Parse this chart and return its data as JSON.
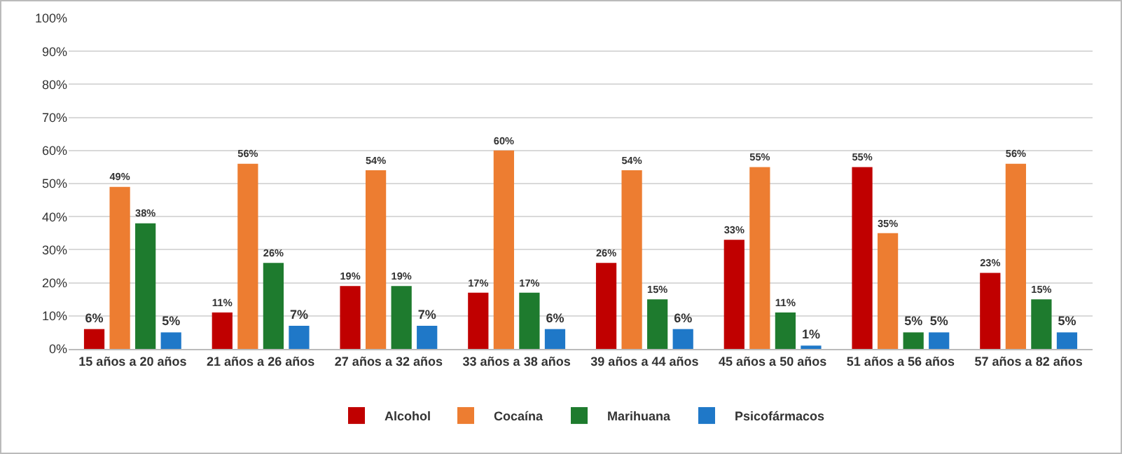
{
  "chart_data": {
    "type": "bar",
    "categories": [
      "15 años a 20 años",
      "21 años a 26 años",
      "27 años a 32 años",
      "33 años a 38 años",
      "39 años a 44 años",
      "45 años a 50 años",
      "51 años a 56 años",
      "57 años a 82 años"
    ],
    "series": [
      {
        "name": "Alcohol",
        "color": "#c00000",
        "values": [
          6,
          11,
          19,
          17,
          26,
          33,
          55,
          23
        ],
        "value_labels": [
          "6%",
          "11%",
          "19%",
          "17%",
          "26%",
          "33%",
          "55%",
          "23%"
        ]
      },
      {
        "name": "Cocaína",
        "color": "#ed7d31",
        "values": [
          49,
          56,
          54,
          60,
          54,
          55,
          35,
          56
        ],
        "value_labels": [
          "49%",
          "56%",
          "54%",
          "60%",
          "54%",
          "55%",
          "35%",
          "56%"
        ]
      },
      {
        "name": "Marihuana",
        "color": "#1e7b2e",
        "values": [
          38,
          26,
          19,
          17,
          15,
          11,
          5,
          15
        ],
        "value_labels": [
          "38%",
          "26%",
          "19%",
          "17%",
          "15%",
          "11%",
          "5%",
          "15%"
        ]
      },
      {
        "name": "Psicofármacos",
        "color": "#1f78c8",
        "values": [
          5,
          7,
          7,
          6,
          6,
          1,
          5,
          5
        ],
        "value_labels": [
          "5%",
          "7%",
          "7%",
          "6%",
          "6%",
          "1%",
          "5%",
          "5%"
        ]
      }
    ],
    "ylim": [
      0,
      100
    ],
    "yticks": [
      {
        "value": 0,
        "label": "0%"
      },
      {
        "value": 10,
        "label": "10%"
      },
      {
        "value": 20,
        "label": "20%"
      },
      {
        "value": 30,
        "label": "30%"
      },
      {
        "value": 40,
        "label": "40%"
      },
      {
        "value": 50,
        "label": "50%"
      },
      {
        "value": 60,
        "label": "60%"
      },
      {
        "value": 70,
        "label": "70%"
      },
      {
        "value": 80,
        "label": "80%"
      },
      {
        "value": 90,
        "label": "90%"
      },
      {
        "value": 100,
        "label": "100%"
      }
    ],
    "grid": "y",
    "legend": "bottom"
  }
}
